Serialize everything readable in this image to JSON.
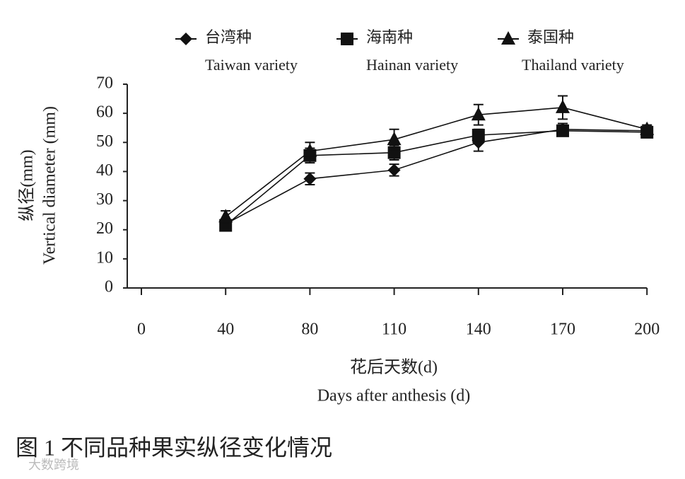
{
  "chart_data": {
    "type": "line",
    "categories": [
      "0",
      "40",
      "80",
      "110",
      "140",
      "170",
      "200"
    ],
    "series": [
      {
        "name": "台湾种",
        "name_en": "Taiwan variety",
        "color": "#111111",
        "marker": "diamond",
        "values": [
          null,
          22,
          37.5,
          40.5,
          50,
          54.5,
          54
        ],
        "errors": [
          null,
          1.5,
          2,
          2,
          3,
          2,
          1.5
        ]
      },
      {
        "name": "海南种",
        "name_en": "Hainan variety",
        "color": "#111111",
        "marker": "square",
        "values": [
          null,
          21.5,
          45.5,
          46.5,
          52.5,
          54,
          53.5
        ],
        "errors": [
          null,
          1.5,
          2.5,
          2.5,
          2,
          1.5,
          1.5
        ]
      },
      {
        "name": "泰国种",
        "name_en": "Thailand variety",
        "color": "#111111",
        "marker": "triangle",
        "values": [
          null,
          24.5,
          47,
          51,
          59.5,
          62,
          54.5
        ],
        "errors": [
          null,
          2,
          3,
          3.5,
          3.5,
          4,
          1.5
        ]
      }
    ],
    "ylim": [
      0,
      70
    ],
    "yticks": [
      0,
      10,
      20,
      30,
      40,
      50,
      60,
      70
    ],
    "ylabel": "纵径(mm)",
    "ylabel_en": "Vertical diameter (mm)",
    "xlabel": "花后天数(d)",
    "xlabel_en": "Days after anthesis (d)",
    "caption": "图 1 不同品种果实纵径变化情况",
    "watermark": "大数跨境"
  }
}
